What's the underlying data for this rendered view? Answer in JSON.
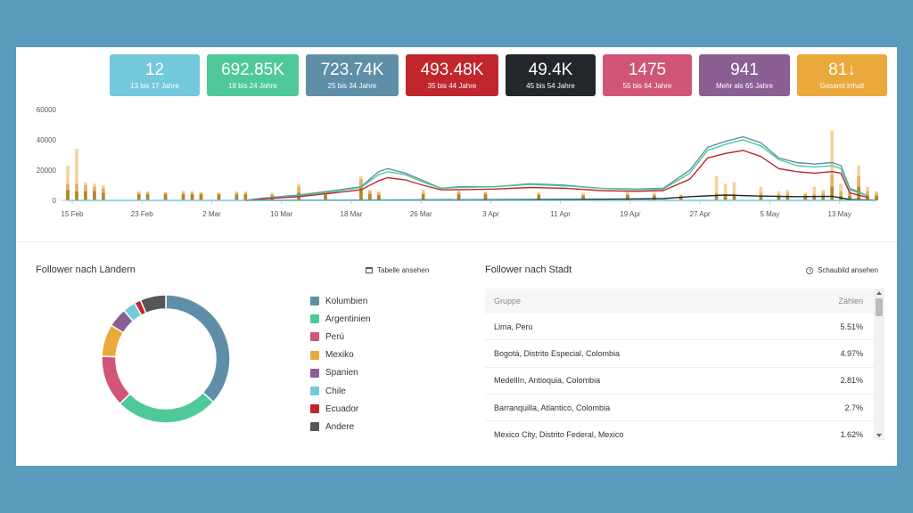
{
  "stats": [
    {
      "value": "12",
      "label": "13 bis 17 Jahre",
      "color": "#74c8db"
    },
    {
      "value": "692.85K",
      "label": "18 bis 24 Jahre",
      "color": "#4fc99a"
    },
    {
      "value": "723.74K",
      "label": "25 bis 34 Jahre",
      "color": "#5f8fa8"
    },
    {
      "value": "493.48K",
      "label": "35 bis 44 Jahre",
      "color": "#c0262c"
    },
    {
      "value": "49.4K",
      "label": "45 bis 54 Jahre",
      "color": "#23262b"
    },
    {
      "value": "1475",
      "label": "55 bis 64 Jahre",
      "color": "#d05577"
    },
    {
      "value": "941",
      "label": "Mehr als 65 Jahre",
      "color": "#8b5f93"
    },
    {
      "value": "81↓",
      "label": "Gesamt Inhalt",
      "color": "#eaa93a"
    }
  ],
  "chart_data": {
    "type": "line",
    "x_ticks": [
      "15 Feb",
      "23 Feb",
      "2 Mar",
      "10 Mar",
      "18 Mar",
      "26 Mar",
      "3 Apr",
      "11 Apr",
      "19 Apr",
      "27 Apr",
      "5 May",
      "13 May"
    ],
    "y_ticks": [
      "0",
      "20000",
      "40000",
      "60000"
    ],
    "ylim": [
      0,
      60000
    ],
    "days": 91,
    "series": [
      {
        "color": "#5f8fa8",
        "points": [
          [
            20,
            0
          ],
          [
            22,
            1500
          ],
          [
            26,
            3500
          ],
          [
            30,
            6500
          ],
          [
            33,
            9000
          ],
          [
            35,
            19000
          ],
          [
            36,
            21000
          ],
          [
            38,
            18000
          ],
          [
            40,
            13000
          ],
          [
            42,
            8000
          ],
          [
            44,
            9000
          ],
          [
            48,
            9000
          ],
          [
            52,
            11000
          ],
          [
            56,
            10000
          ],
          [
            60,
            8000
          ],
          [
            64,
            7500
          ],
          [
            67,
            8000
          ],
          [
            70,
            20000
          ],
          [
            72,
            35000
          ],
          [
            74,
            39000
          ],
          [
            76,
            42000
          ],
          [
            78,
            38000
          ],
          [
            80,
            28000
          ],
          [
            82,
            25000
          ],
          [
            84,
            24000
          ],
          [
            86,
            25000
          ],
          [
            87,
            23000
          ],
          [
            88,
            8000
          ],
          [
            90,
            3000
          ]
        ]
      },
      {
        "color": "#4fc99a",
        "points": [
          [
            20,
            0
          ],
          [
            22,
            1500
          ],
          [
            26,
            3000
          ],
          [
            30,
            6000
          ],
          [
            33,
            8500
          ],
          [
            35,
            17000
          ],
          [
            36,
            19000
          ],
          [
            38,
            17000
          ],
          [
            40,
            12000
          ],
          [
            42,
            8000
          ],
          [
            44,
            8500
          ],
          [
            48,
            9000
          ],
          [
            52,
            10500
          ],
          [
            56,
            9500
          ],
          [
            60,
            8000
          ],
          [
            64,
            7000
          ],
          [
            67,
            7500
          ],
          [
            70,
            18000
          ],
          [
            72,
            33000
          ],
          [
            74,
            37000
          ],
          [
            76,
            40000
          ],
          [
            78,
            36000
          ],
          [
            80,
            27000
          ],
          [
            82,
            23000
          ],
          [
            84,
            22000
          ],
          [
            86,
            23000
          ],
          [
            87,
            21000
          ],
          [
            88,
            7000
          ],
          [
            90,
            3000
          ]
        ]
      },
      {
        "color": "#c0262c",
        "points": [
          [
            20,
            0
          ],
          [
            22,
            1000
          ],
          [
            26,
            2500
          ],
          [
            30,
            5000
          ],
          [
            33,
            7000
          ],
          [
            35,
            13000
          ],
          [
            36,
            15000
          ],
          [
            38,
            13500
          ],
          [
            40,
            10000
          ],
          [
            42,
            7000
          ],
          [
            44,
            7000
          ],
          [
            48,
            7500
          ],
          [
            52,
            8500
          ],
          [
            56,
            8000
          ],
          [
            60,
            6500
          ],
          [
            64,
            6000
          ],
          [
            67,
            6500
          ],
          [
            70,
            14000
          ],
          [
            72,
            28000
          ],
          [
            74,
            31000
          ],
          [
            76,
            33000
          ],
          [
            78,
            29000
          ],
          [
            80,
            21000
          ],
          [
            82,
            19000
          ],
          [
            84,
            18000
          ],
          [
            86,
            19000
          ],
          [
            87,
            18000
          ],
          [
            88,
            5000
          ],
          [
            90,
            2000
          ]
        ]
      },
      {
        "color": "#23262b",
        "points": [
          [
            20,
            0
          ],
          [
            40,
            300
          ],
          [
            55,
            600
          ],
          [
            62,
            800
          ],
          [
            67,
            1200
          ],
          [
            70,
            2500
          ],
          [
            74,
            3500
          ],
          [
            78,
            2800
          ],
          [
            82,
            2500
          ],
          [
            86,
            2700
          ],
          [
            88,
            600
          ],
          [
            91,
            200
          ]
        ]
      },
      {
        "color": "#74c8db",
        "points": [
          [
            0,
            0
          ],
          [
            91,
            0
          ]
        ]
      }
    ],
    "bars": [
      [
        0,
        23000,
        11000,
        7000
      ],
      [
        1,
        34000,
        11000,
        6000
      ],
      [
        2,
        12000,
        10000,
        6000
      ],
      [
        3,
        11000,
        9000,
        6000
      ],
      [
        4,
        10000,
        8000,
        5000
      ],
      [
        8,
        6000,
        5000,
        4000
      ],
      [
        9,
        6000,
        5000,
        4000
      ],
      [
        11,
        5500,
        5000,
        4000
      ],
      [
        13,
        6500,
        5000,
        4000
      ],
      [
        14,
        6000,
        5000,
        4000
      ],
      [
        15,
        5500,
        5000,
        4000
      ],
      [
        17,
        5500,
        4500,
        4000
      ],
      [
        19,
        6000,
        5000,
        4000
      ],
      [
        20,
        6000,
        5000,
        4000
      ],
      [
        23,
        5000,
        4000,
        3000
      ],
      [
        26,
        11000,
        9000,
        5000
      ],
      [
        29,
        6000,
        5000,
        3500
      ],
      [
        33,
        16000,
        14000,
        8000
      ],
      [
        34,
        7000,
        6000,
        4000
      ],
      [
        35,
        6000,
        5000,
        3500
      ],
      [
        40,
        7000,
        5000,
        4000
      ],
      [
        44,
        6500,
        5500,
        4000
      ],
      [
        47,
        6000,
        5000,
        4000
      ],
      [
        53,
        5500,
        4500,
        3500
      ],
      [
        58,
        5000,
        4000,
        3000
      ],
      [
        63,
        5500,
        4500,
        3500
      ],
      [
        66,
        5000,
        4000,
        3000
      ],
      [
        69,
        4000,
        3500,
        2500
      ],
      [
        73,
        16000,
        5000,
        3000
      ],
      [
        74,
        11000,
        4000,
        3000
      ],
      [
        75,
        12000,
        4500,
        3000
      ],
      [
        78,
        9000,
        5000,
        3000
      ],
      [
        80,
        6000,
        4000,
        3000
      ],
      [
        81,
        7000,
        5000,
        3000
      ],
      [
        83,
        5000,
        4000,
        3000
      ],
      [
        84,
        9000,
        4000,
        3000
      ],
      [
        85,
        7000,
        5000,
        3000
      ],
      [
        86,
        46000,
        17000,
        9000
      ],
      [
        87,
        11000,
        6000,
        3000
      ],
      [
        88,
        7000,
        5000,
        3000
      ],
      [
        89,
        23000,
        16000,
        9000
      ],
      [
        90,
        9000,
        6000,
        3000
      ],
      [
        91,
        6000,
        4500,
        3000
      ]
    ]
  },
  "countries": {
    "title": "Follower nach Ländern",
    "link": "Tabelle ansehen",
    "items": [
      {
        "label": "Kolumbien",
        "color": "#5f8fa8",
        "value": 34
      },
      {
        "label": "Argentinien",
        "color": "#4fc99a",
        "value": 24
      },
      {
        "label": "Perú",
        "color": "#d05577",
        "value": 12
      },
      {
        "label": "Mexiko",
        "color": "#eaa93a",
        "value": 7.5
      },
      {
        "label": "Spanien",
        "color": "#8b5f93",
        "value": 4.5
      },
      {
        "label": "Chile",
        "color": "#74c8db",
        "value": 3
      },
      {
        "label": "Ecuador",
        "color": "#c0262c",
        "value": 1.5
      },
      {
        "label": "Andere",
        "color": "#555555",
        "value": 6
      }
    ]
  },
  "cities": {
    "title": "Follower nach Stadt",
    "link": "Schaubild ansehen",
    "col_group": "Gruppe",
    "col_count": "Zählen",
    "rows": [
      {
        "city": "Lima, Peru",
        "pct": "5.51%"
      },
      {
        "city": "Bogotá, Distrito Especial, Colombia",
        "pct": "4.97%"
      },
      {
        "city": "Medellín, Antioquia, Colombia",
        "pct": "2.81%"
      },
      {
        "city": "Barranquilla, Atlantico, Colombia",
        "pct": "2.7%"
      },
      {
        "city": "Mexico City, Distrito Federal, Mexico",
        "pct": "1.62%"
      }
    ]
  }
}
